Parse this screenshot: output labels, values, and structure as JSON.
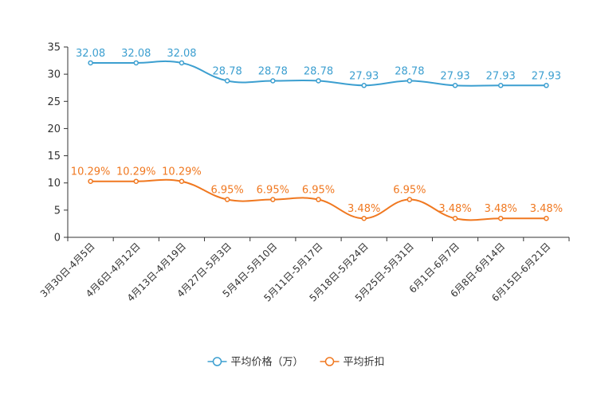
{
  "chart_data": {
    "type": "line",
    "categories": [
      "3月30日-4月5日",
      "4月6日-4月12日",
      "4月13日-4月19日",
      "4月27日-5月3日",
      "5月4日-5月10日",
      "5月11日-5月17日",
      "5月18日-5月24日",
      "5月25日-5月31日",
      "6月1日-6月7日",
      "6月8日-6月14日",
      "6月15日-6月21日"
    ],
    "ylim": [
      0,
      35
    ],
    "yticks": [
      0,
      5,
      10,
      15,
      20,
      25,
      30,
      35
    ],
    "series": [
      {
        "name": "平均价格（万）",
        "color": "#3c9fd0",
        "values": [
          32.08,
          32.08,
          32.08,
          28.78,
          28.78,
          28.78,
          27.93,
          28.78,
          27.93,
          27.93,
          27.93
        ],
        "labels": [
          "32.08",
          "32.08",
          "32.08",
          "28.78",
          "28.78",
          "28.78",
          "27.93",
          "28.78",
          "27.93",
          "27.93",
          "27.93"
        ]
      },
      {
        "name": "平均折扣",
        "color": "#f07820",
        "values": [
          10.29,
          10.29,
          10.29,
          6.95,
          6.95,
          6.95,
          3.48,
          6.95,
          3.48,
          3.48,
          3.48
        ],
        "labels": [
          "10.29%",
          "10.29%",
          "10.29%",
          "6.95%",
          "6.95%",
          "6.95%",
          "3.48%",
          "6.95%",
          "3.48%",
          "3.48%",
          "3.48%"
        ]
      }
    ],
    "legend": {
      "position": "bottom-center"
    },
    "grid": false
  }
}
